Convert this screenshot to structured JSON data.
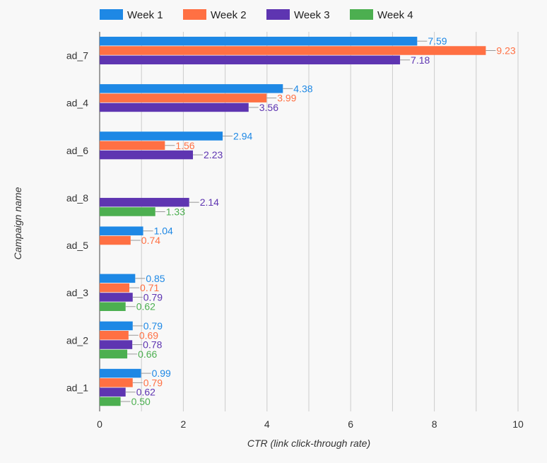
{
  "chart_data": {
    "type": "bar",
    "orientation": "horizontal",
    "title": "",
    "xlabel": "CTR (link click-through rate)",
    "ylabel": "Campaign name",
    "xlim": [
      0,
      10
    ],
    "x_ticks": [
      0,
      2,
      4,
      6,
      8,
      10
    ],
    "grid": true,
    "legend_position": "top",
    "categories": [
      "ad_7",
      "ad_4",
      "ad_6",
      "ad_8",
      "ad_5",
      "ad_3",
      "ad_2",
      "ad_1"
    ],
    "series": [
      {
        "name": "Week 1",
        "color": "#1e88e5",
        "values": [
          7.59,
          4.38,
          2.94,
          null,
          1.04,
          0.85,
          0.79,
          0.99
        ],
        "labels": [
          "7.59",
          "4.38",
          "2.94",
          null,
          "1.04",
          "0.85",
          "0.79",
          "0.99"
        ]
      },
      {
        "name": "Week 2",
        "color": "#ff7043",
        "values": [
          9.23,
          3.99,
          1.56,
          null,
          0.74,
          0.71,
          0.69,
          0.79
        ],
        "labels": [
          "9.23",
          "3.99",
          "1.56",
          null,
          "0.74",
          "0.71",
          "0.69",
          "0.79"
        ]
      },
      {
        "name": "Week 3",
        "color": "#5e35b1",
        "values": [
          7.18,
          3.56,
          2.23,
          2.14,
          null,
          0.79,
          0.78,
          0.62
        ],
        "labels": [
          "7.18",
          "3.56",
          "2.23",
          "2.14",
          null,
          "0.79",
          "0.78",
          "0.62"
        ]
      },
      {
        "name": "Week 4",
        "color": "#4caf50",
        "values": [
          null,
          null,
          null,
          1.33,
          null,
          0.62,
          0.66,
          0.5
        ],
        "labels": [
          null,
          null,
          null,
          "1.33",
          null,
          "0.62",
          "0.66",
          "0.50"
        ]
      }
    ],
    "colors": {
      "background": "#f8f8f8",
      "grid": "#cccccc",
      "axis_text": "#333333"
    }
  }
}
